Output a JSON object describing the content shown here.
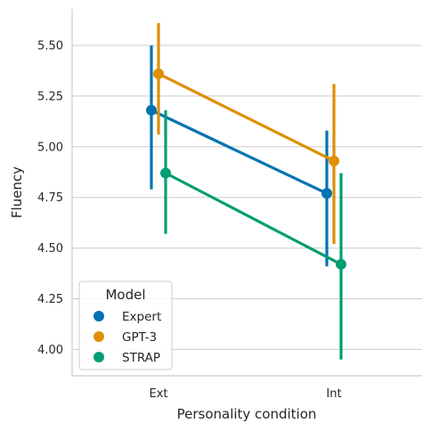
{
  "chart_data": {
    "type": "line",
    "title": "",
    "xlabel": "Personality condition",
    "ylabel": "Fluency",
    "categories": [
      "Ext",
      "Int"
    ],
    "ylim": [
      3.87,
      5.68
    ],
    "yticks": [
      "4.00",
      "4.25",
      "4.50",
      "4.75",
      "5.00",
      "5.25",
      "5.50"
    ],
    "grid": "horizontal",
    "legend": {
      "title": "Model",
      "placement": "lower-left"
    },
    "series": [
      {
        "name": "Expert",
        "color": "#0173b2",
        "values": [
          5.18,
          4.77
        ],
        "ci_low": [
          4.79,
          4.41
        ],
        "ci_high": [
          5.5,
          5.08
        ]
      },
      {
        "name": "GPT-3",
        "color": "#de8f05",
        "values": [
          5.36,
          4.93
        ],
        "ci_low": [
          5.06,
          4.52
        ],
        "ci_high": [
          5.61,
          5.31
        ]
      },
      {
        "name": "STRAP",
        "color": "#029e73",
        "values": [
          4.87,
          4.42
        ],
        "ci_low": [
          4.57,
          3.95
        ],
        "ci_high": [
          5.18,
          4.87
        ]
      }
    ]
  }
}
